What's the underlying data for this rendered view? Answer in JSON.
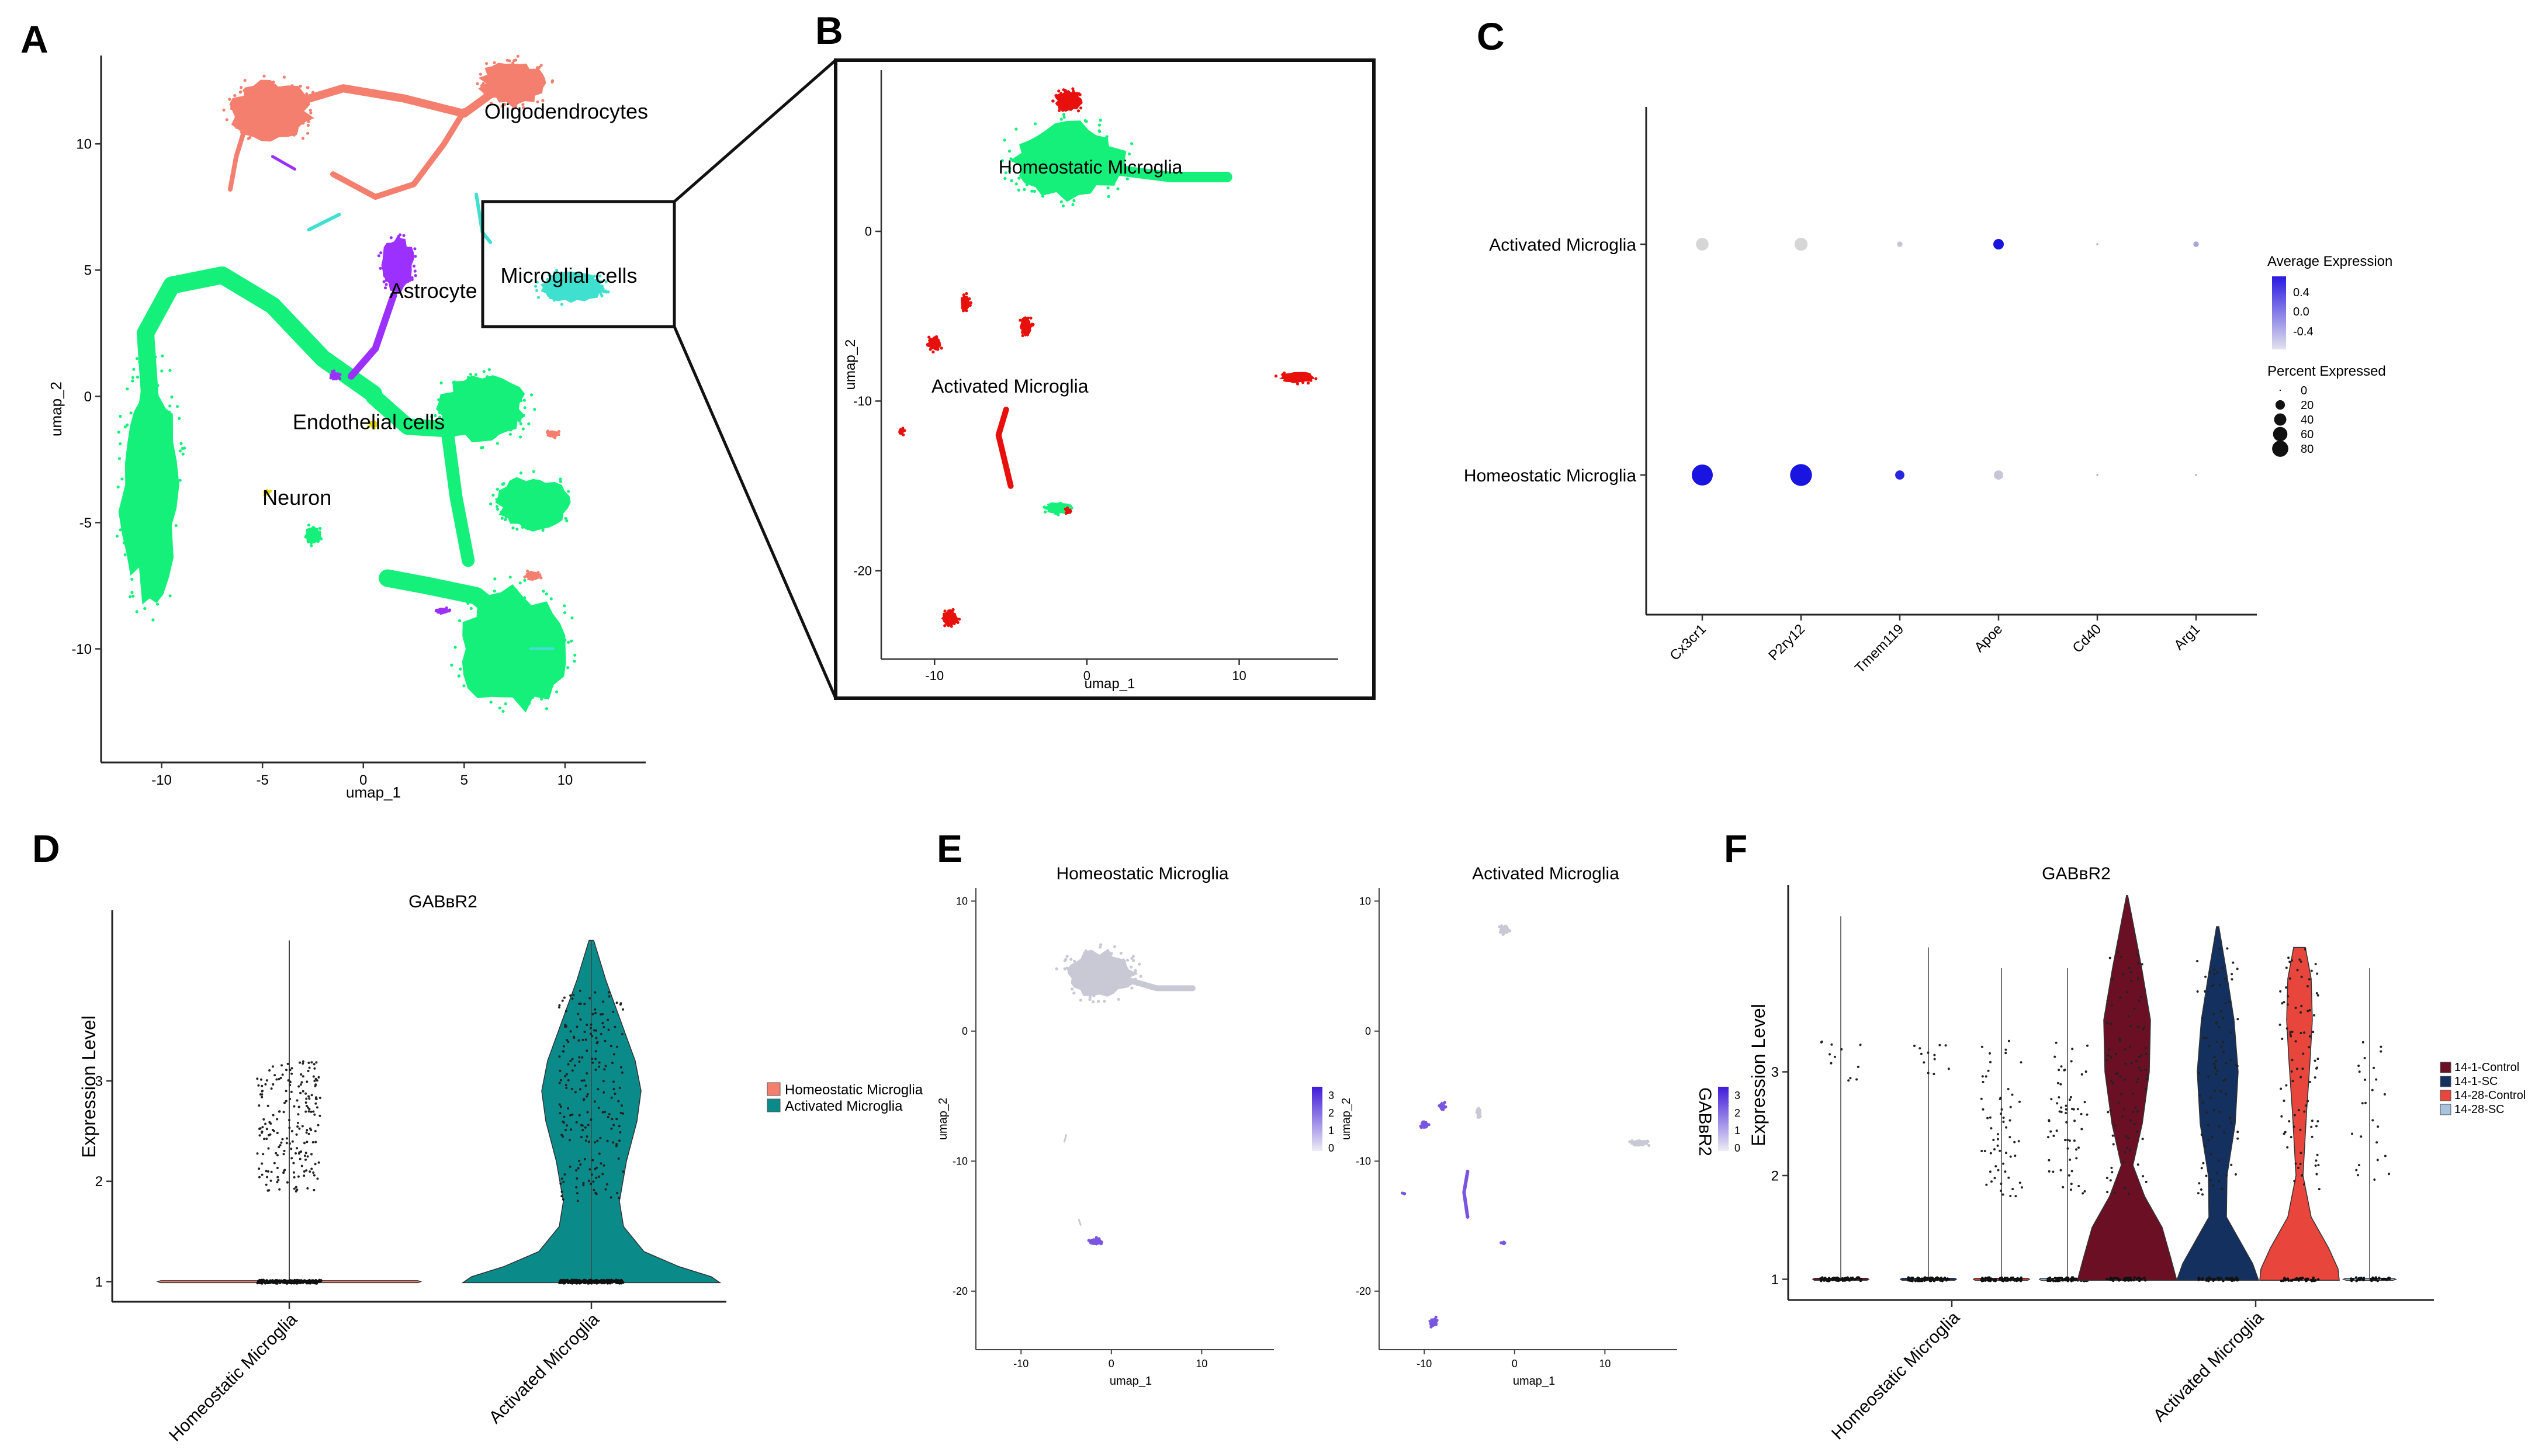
{
  "figure": {
    "panel_labels": [
      "A",
      "B",
      "C",
      "D",
      "E",
      "F"
    ]
  },
  "chart_data": [
    {
      "panel": "A",
      "type": "scatter",
      "title": "",
      "xlabel": "umap_1",
      "ylabel": "umap_2",
      "xlim": [
        -13,
        14
      ],
      "ylim": [
        -14.5,
        13.5
      ],
      "xticks": [
        -10,
        -5,
        0,
        5,
        10
      ],
      "yticks": [
        -10,
        -5,
        0,
        5,
        10
      ],
      "grid": false,
      "clusters": [
        {
          "name": "Oligodendrocytes",
          "color": "#f47f6e",
          "label_at": [
            6,
            11
          ]
        },
        {
          "name": "Astrocyte",
          "color": "#9b30ff",
          "label_at": [
            1.3,
            3.9
          ]
        },
        {
          "name": "Endothelial cells",
          "color": "#14f07a",
          "label_at": [
            -3.5,
            -1.3
          ]
        },
        {
          "name": "Microglial cells",
          "color": "#40e0d0",
          "label_at": [
            6.8,
            4.5
          ]
        },
        {
          "name": "Neuron",
          "color": "#e6d800",
          "label_at": [
            -5,
            -4.3
          ]
        }
      ]
    },
    {
      "panel": "B",
      "type": "scatter",
      "title": "",
      "xlabel": "umap_1",
      "ylabel": "umap_2",
      "xlim": [
        -13.5,
        16.5
      ],
      "ylim": [
        -25.2,
        9.5
      ],
      "xticks": [
        -10,
        0,
        10
      ],
      "yticks": [
        -20,
        -10,
        0
      ],
      "grid": false,
      "clusters": [
        {
          "name": "Homeostatic Microglia",
          "color": "#14f07a",
          "label_at": [
            -5.8,
            3.4
          ]
        },
        {
          "name": "Activated Microglia",
          "color": "#e8100c",
          "label_at": [
            -10.2,
            -9.5
          ]
        }
      ]
    },
    {
      "panel": "C",
      "type": "dot",
      "title": "",
      "xlabel": "",
      "ylabel": "",
      "genes": [
        "Cx3cr1",
        "P2ry12",
        "Tmem119",
        "Apoe",
        "Cd40",
        "Arg1"
      ],
      "groups": [
        "Activated Microglia",
        "Homeostatic Microglia"
      ],
      "avg_expression": [
        [
          -0.6,
          -0.6,
          -0.5,
          0.6,
          -0.3,
          -0.3
        ],
        [
          0.6,
          0.6,
          0.5,
          -0.5,
          -0.3,
          -0.3
        ]
      ],
      "pct_expressed": [
        [
          20,
          22,
          1,
          12,
          0,
          1
        ],
        [
          75,
          82,
          8,
          8,
          0,
          0
        ]
      ],
      "legend": {
        "color_title": "Average Expression",
        "color_ticks": [
          "0.4",
          "0.0",
          "-0.4"
        ],
        "size_title": "Percent Expressed",
        "size_ticks": [
          "0",
          "20",
          "40",
          "60",
          "80"
        ]
      }
    },
    {
      "panel": "D",
      "type": "violin",
      "title": "GABʙR2",
      "xlabel": "",
      "ylabel": "Expression Level",
      "ylim": [
        0.8,
        4.7
      ],
      "yticks": [
        1,
        2,
        3
      ],
      "categories": [
        "Homeostatic Microglia",
        "Activated Microglia"
      ],
      "colors": [
        "#f47f6e",
        "#0b8a8a"
      ],
      "max_values": [
        4.4,
        4.4
      ],
      "legend": [
        "Homeostatic Microglia",
        "Activated Microglia"
      ]
    },
    {
      "panel": "E",
      "type": "scatter",
      "feature": "GABʙR2",
      "titles": [
        "Homeostatic Microglia",
        "Activated Microglia"
      ],
      "xlabel": "umap_1",
      "ylabel": "umap_2",
      "xlim": [
        -15,
        18
      ],
      "ylim": [
        -24.5,
        11
      ],
      "xticks": [
        -10,
        0,
        10
      ],
      "yticks": [
        -20,
        -10,
        0,
        10
      ],
      "colorbar_ticks": [
        "3",
        "2",
        "1",
        "0"
      ],
      "colorbar_range": [
        0,
        3.5
      ]
    },
    {
      "panel": "F",
      "type": "violin",
      "title": "GABʙR2",
      "xlabel": "",
      "ylabel": "Expression Level",
      "ylim": [
        0.8,
        4.8
      ],
      "yticks": [
        1,
        2,
        3
      ],
      "categories": [
        "Homeostatic Microglia",
        "Activated Microglia"
      ],
      "series": [
        {
          "name": "14-1-Control",
          "color": "#6b1024",
          "max_values": [
            4.5,
            4.7
          ]
        },
        {
          "name": "14-1-SC",
          "color": "#14305e",
          "max_values": [
            4.2,
            4.5
          ]
        },
        {
          "name": "14-28-Control",
          "color": "#e8453c",
          "max_values": [
            4.0,
            4.2
          ]
        },
        {
          "name": "14-28-SC",
          "color": "#a9c3df",
          "max_values": [
            4.0,
            4.0
          ]
        }
      ]
    }
  ]
}
